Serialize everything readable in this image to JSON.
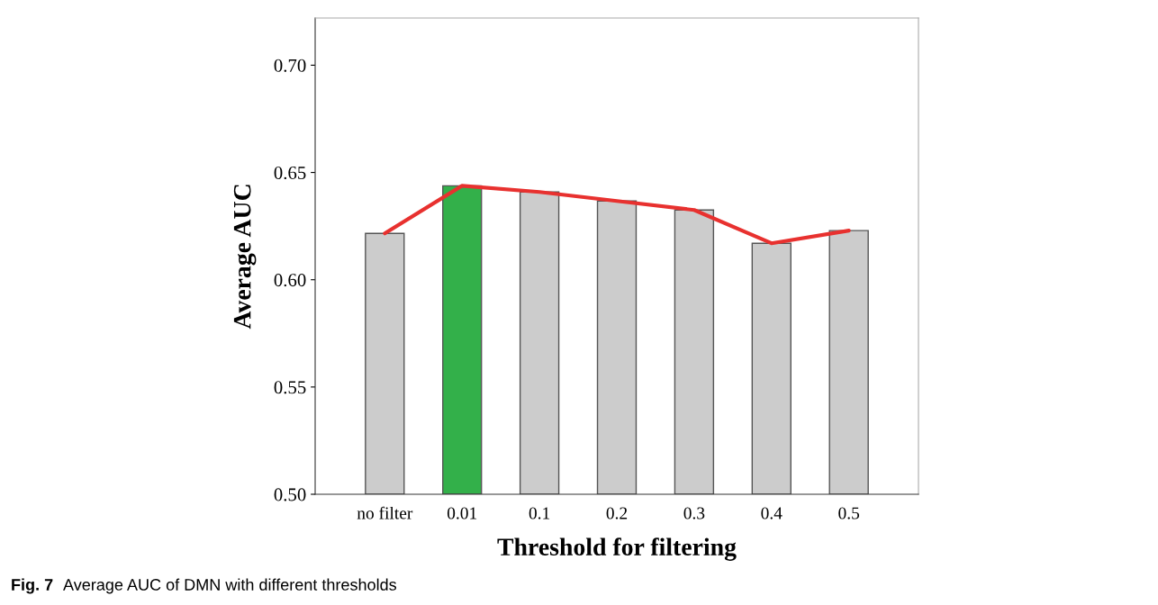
{
  "chart_data": {
    "type": "bar",
    "xlabel": "Threshold for filtering",
    "ylabel": "Average AUC",
    "categories": [
      "no filter",
      "0.01",
      "0.1",
      "0.2",
      "0.3",
      "0.4",
      "0.5"
    ],
    "series": [
      {
        "colors": [
          "#cccccc",
          "#33b04a",
          "#cccccc",
          "#cccccc",
          "#cccccc",
          "#cccccc",
          "#cccccc"
        ],
        "values": [
          0.6216,
          0.6438,
          0.6409,
          0.6367,
          0.6325,
          0.617,
          0.6229
        ]
      },
      {
        "type": "line",
        "color": "#e8312f",
        "values": [
          0.6216,
          0.6438,
          0.6409,
          0.6367,
          0.6325,
          0.617,
          0.6229
        ]
      }
    ],
    "ylim": [
      0.5,
      0.722
    ],
    "yticks": [
      {
        "value": 0.5,
        "label": "0.50"
      },
      {
        "value": 0.55,
        "label": "0.55"
      },
      {
        "value": 0.6,
        "label": "0.60"
      },
      {
        "value": 0.65,
        "label": "0.65"
      },
      {
        "value": 0.7,
        "label": "0.70"
      }
    ],
    "grid": false,
    "legend": false,
    "marker": "none",
    "line_style": "solid",
    "annotations": [
      "Fig. 7",
      "Average AUC of DMN with different thresholds"
    ]
  }
}
